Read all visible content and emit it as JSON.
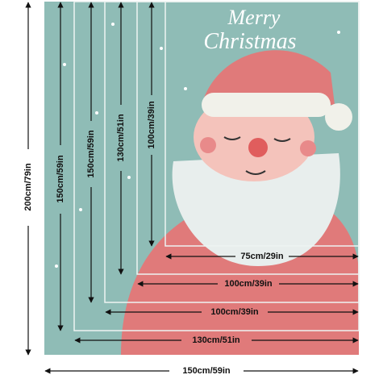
{
  "title": {
    "line1": "Merry",
    "line2": "Christmas"
  },
  "vertical_dimensions": [
    "200cm/79in",
    "150cm/59in",
    "150cm/59in",
    "130cm/51in",
    "100cm/39in"
  ],
  "horizontal_dimensions": [
    "75cm/29in",
    "100cm/39in",
    "100cm/39in",
    "130cm/51in",
    "150cm/59in"
  ]
}
